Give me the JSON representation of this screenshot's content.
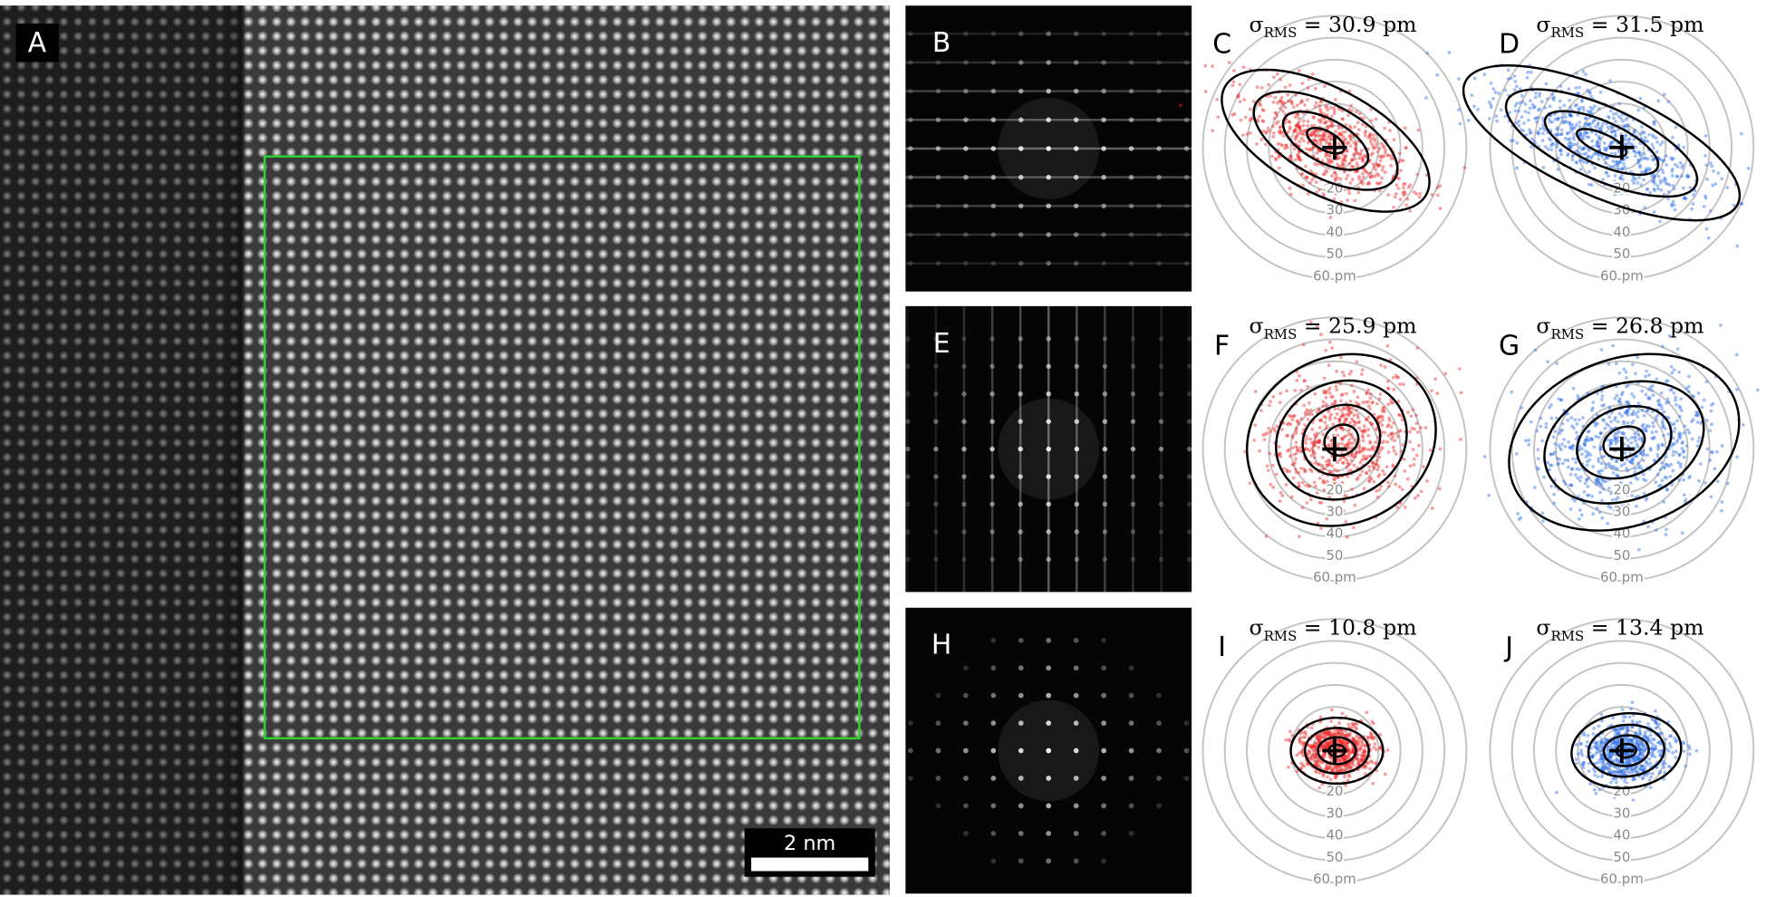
{
  "image_panel": {
    "label": "A",
    "scale_bar": "2 nm"
  },
  "fft_panels": [
    {
      "label": "B",
      "streaks": "horizontal"
    },
    {
      "label": "E",
      "streaks": "vertical"
    },
    {
      "label": "H",
      "streaks": "spots"
    }
  ],
  "ring_labels": [
    "20",
    "30",
    "40",
    "50",
    "60 pm"
  ],
  "scatter_panels": [
    {
      "label": "C",
      "sigma_symbol": "σ",
      "sigma_subscript": "RMS",
      "sigma_value": "= 30.9 pm",
      "color": "#ee2b2b"
    },
    {
      "label": "D",
      "sigma_symbol": "σ",
      "sigma_subscript": "RMS",
      "sigma_value": "= 31.5 pm",
      "color": "#2f6fe8"
    },
    {
      "label": "F",
      "sigma_symbol": "σ",
      "sigma_subscript": "RMS",
      "sigma_value": "= 25.9 pm",
      "color": "#ee2b2b"
    },
    {
      "label": "G",
      "sigma_symbol": "σ",
      "sigma_subscript": "RMS",
      "sigma_value": "= 26.8 pm",
      "color": "#2f6fe8"
    },
    {
      "label": "I",
      "sigma_symbol": "σ",
      "sigma_subscript": "RMS",
      "sigma_value": "= 10.8 pm",
      "color": "#ee2b2b"
    },
    {
      "label": "J",
      "sigma_symbol": "σ",
      "sigma_subscript": "RMS",
      "sigma_value": "= 13.4 pm",
      "color": "#2f6fe8"
    }
  ]
}
